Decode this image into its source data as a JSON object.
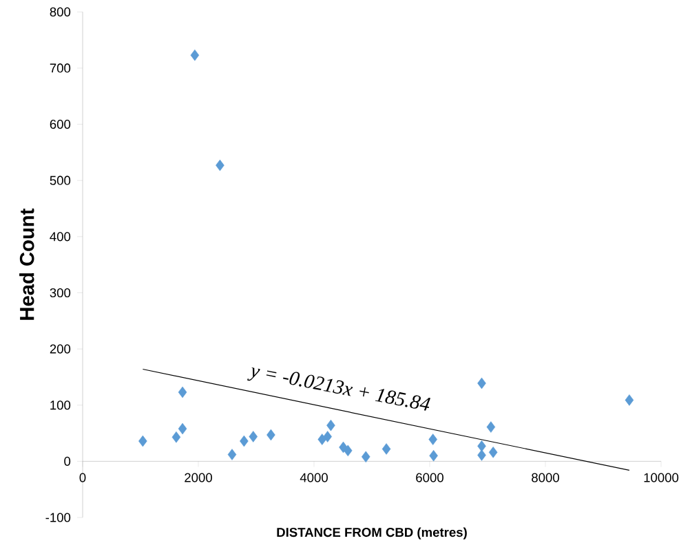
{
  "chart_data": {
    "type": "scatter",
    "xlabel": "DISTANCE FROM CBD (metres)",
    "ylabel": "Head Count",
    "annotations": [
      "y = -0.0213x + 185.84"
    ],
    "xlim": [
      0,
      10000
    ],
    "ylim": [
      -100,
      800
    ],
    "xticks": [
      0,
      2000,
      4000,
      6000,
      8000,
      10000
    ],
    "yticks": [
      -100,
      0,
      100,
      200,
      300,
      400,
      500,
      600,
      700,
      800
    ],
    "grid": false,
    "marker": "diamond",
    "series": [
      {
        "color": "#5b9bd5",
        "x": [
          1040,
          1727,
          1727,
          1618,
          2583,
          2790,
          2949,
          3255,
          4291,
          4234,
          4140,
          4506,
          4586,
          4896,
          5251,
          6056,
          6067,
          6899,
          6899,
          6899,
          7058,
          7097,
          9451,
          1939,
          2374
        ],
        "values": [
          36,
          123,
          58,
          43,
          12,
          36,
          44,
          47,
          64,
          44,
          39,
          25,
          19,
          8,
          22,
          39,
          10,
          139,
          27,
          11,
          61,
          16,
          109,
          723,
          527
        ]
      },
      {
        "type": "line",
        "color": "#000000",
        "marker": "none",
        "x": [
          1040,
          9451
        ],
        "values": [
          164,
          -16
        ]
      }
    ]
  }
}
